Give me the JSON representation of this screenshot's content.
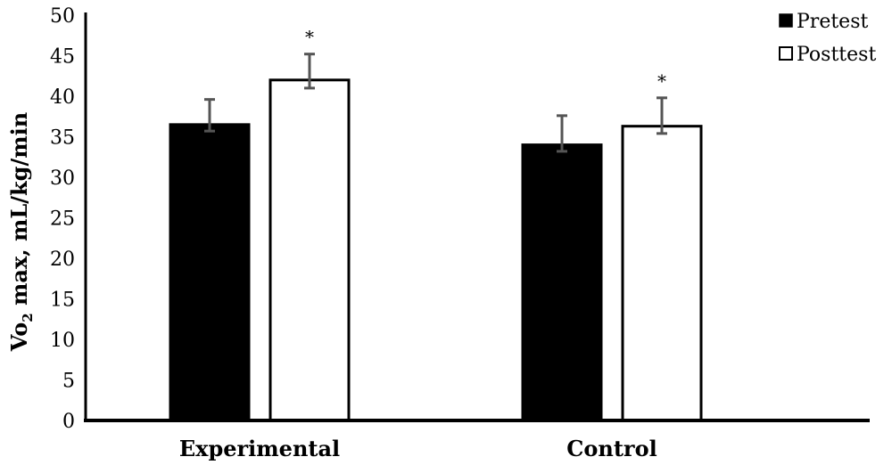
{
  "chart_data": {
    "type": "bar",
    "categories": [
      "Experimental",
      "Control"
    ],
    "series": [
      {
        "name": "Pretest",
        "color": "#000000",
        "values": [
          36.5,
          34.0
        ],
        "error": [
          [
            35.7,
            39.6
          ],
          [
            33.2,
            37.6
          ]
        ],
        "significance": [
          "",
          ""
        ]
      },
      {
        "name": "Posttest",
        "color": "#ffffff",
        "values": [
          42.0,
          36.3
        ],
        "error": [
          [
            41.0,
            45.2
          ],
          [
            35.4,
            39.8
          ]
        ],
        "significance": [
          "*",
          "*"
        ]
      }
    ],
    "ylabel_main": "Vo",
    "ylabel_sub": "2",
    "ylabel_rest": " max, mL/kg/min",
    "ylim": [
      0,
      50
    ],
    "yticks": [
      "0",
      "5",
      "10",
      "15",
      "20",
      "25",
      "30",
      "35",
      "40",
      "45",
      "50"
    ],
    "ytick_values": [
      0,
      5,
      10,
      15,
      20,
      25,
      30,
      35,
      40,
      45,
      50
    ],
    "grid": false,
    "legend_position": "top-right",
    "error_bar_color": "#555555"
  }
}
